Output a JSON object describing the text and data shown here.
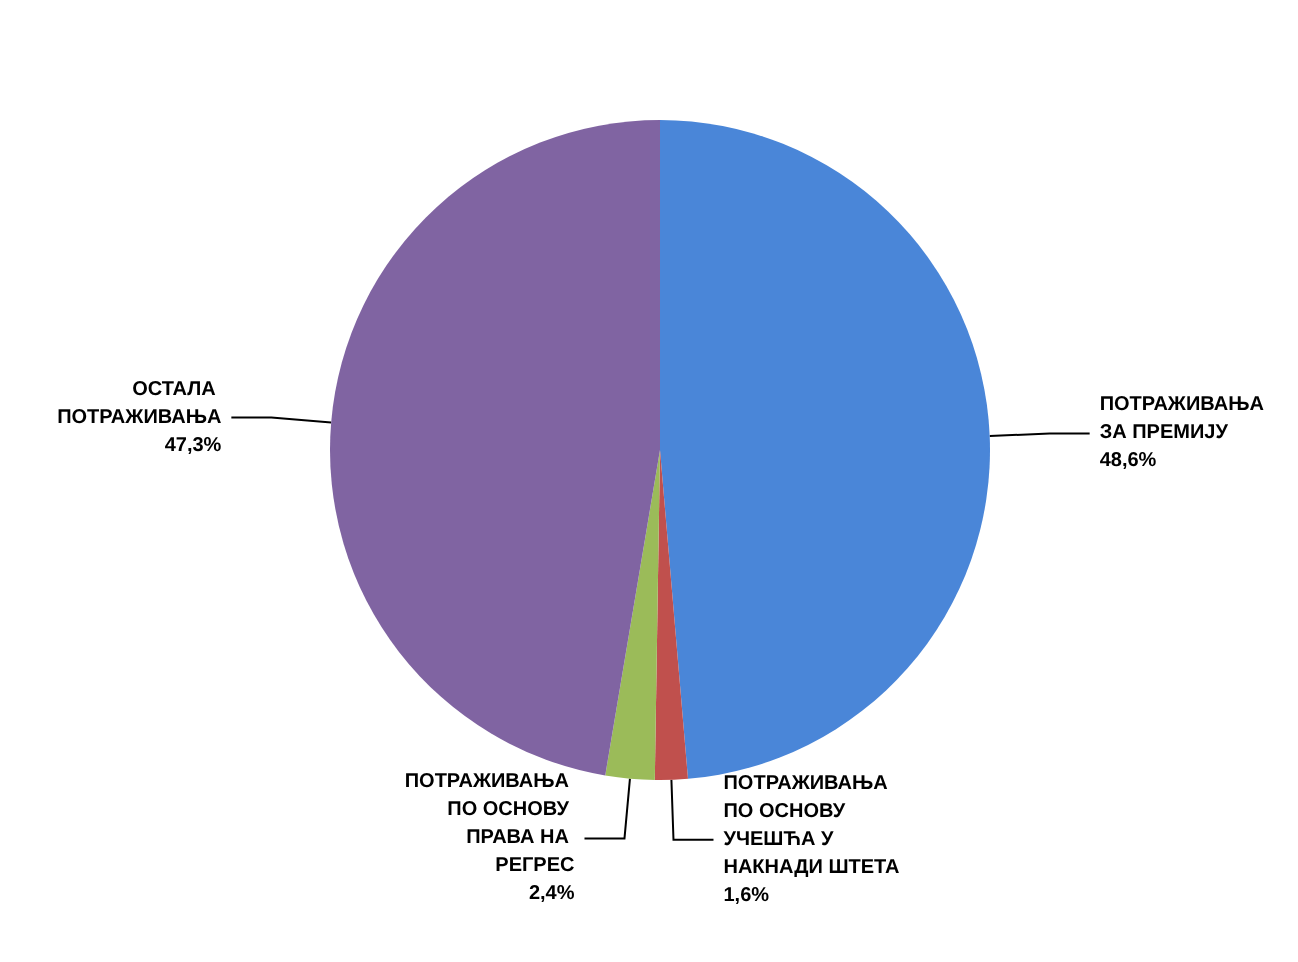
{
  "chart_data": {
    "type": "pie",
    "categories": [
      "ПОТРАЖИВАЊА ЗА ПРЕМИЈУ",
      "ПОТРАЖИВАЊА ПО ОСНОВУ УЧЕШЋА У НАКНАДИ ШТЕТА",
      "ПОТРАЖИВАЊА ПО ОСНОВУ ПРАВА НА РЕГРЕС",
      "ОСТАЛА ПОТРАЖИВАЊА"
    ],
    "values": [
      48.6,
      1.6,
      2.4,
      47.3
    ],
    "value_labels": [
      "48,6%",
      "1,6%",
      "2,4%",
      "47,3%"
    ],
    "colors": [
      "#4a86d8",
      "#c0504d",
      "#9bbb59",
      "#8064a2"
    ],
    "legend": false
  }
}
